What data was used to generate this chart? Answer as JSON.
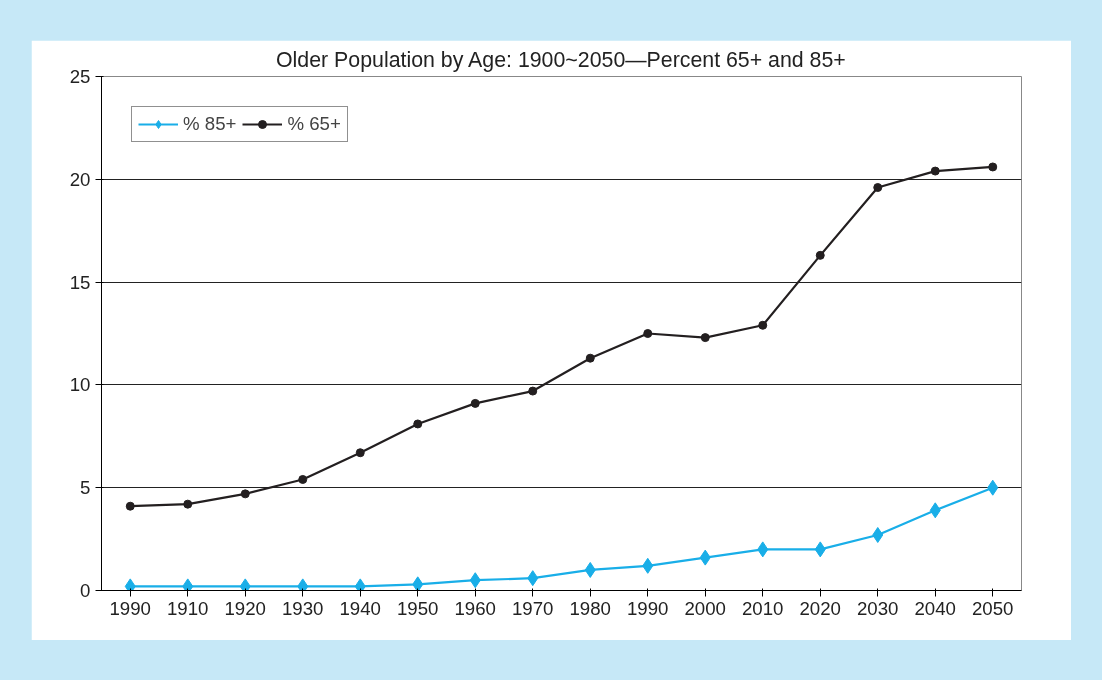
{
  "chart_data": {
    "type": "line",
    "title": "Older Population by Age: 1900~2050—Percent 65+ and 85+",
    "categories": [
      "1990",
      "1910",
      "1920",
      "1930",
      "1940",
      "1950",
      "1960",
      "1970",
      "1980",
      "1990",
      "2000",
      "2010",
      "2020",
      "2030",
      "2040",
      "2050"
    ],
    "series": [
      {
        "name": "% 85+",
        "color": "#19aee8",
        "marker": "diamond",
        "values": [
          0.2,
          0.2,
          0.2,
          0.2,
          0.2,
          0.3,
          0.5,
          0.6,
          1.0,
          1.2,
          1.6,
          2.0,
          2.0,
          2.7,
          3.9,
          5.0
        ]
      },
      {
        "name": "% 65+",
        "color": "#231f20",
        "marker": "circle",
        "values": [
          4.1,
          4.2,
          4.7,
          5.4,
          6.7,
          8.1,
          9.1,
          9.7,
          11.3,
          12.5,
          12.3,
          12.9,
          16.3,
          19.6,
          20.4,
          20.6
        ]
      }
    ],
    "ylim": [
      0,
      25
    ],
    "yticks": [
      0,
      5,
      10,
      15,
      20,
      25
    ],
    "grid": "y",
    "legend": "top left",
    "line_style": "solid"
  }
}
